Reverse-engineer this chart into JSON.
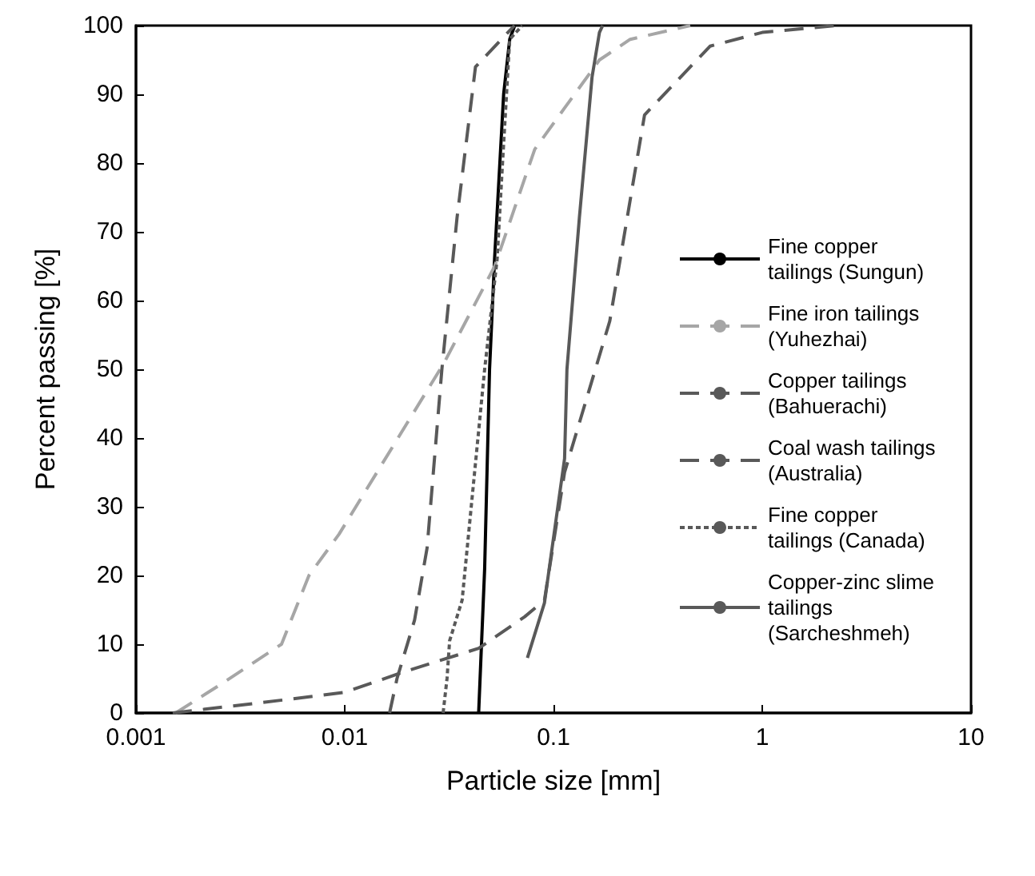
{
  "chart_data": {
    "type": "line",
    "xlabel": "Particle size [mm]",
    "ylabel": "Percent passing [%]",
    "log": "x",
    "xlim": [
      0.001,
      10
    ],
    "xticks": [
      0.001,
      0.01,
      0.1,
      1,
      10
    ],
    "ylim": [
      0,
      100
    ],
    "yticks": [
      0,
      10,
      20,
      30,
      40,
      50,
      60,
      70,
      80,
      90,
      100
    ],
    "grid": false,
    "legend": "right",
    "marker": "none",
    "series": [
      {
        "name": "Fine copper tailings (Sungun)",
        "color": "#000000",
        "line_style": "solid",
        "x": [
          0.0438,
          0.0468,
          0.0494,
          0.0522,
          0.0577,
          0.0617,
          0.0652
        ],
        "values": [
          0,
          21,
          50,
          66,
          90,
          98,
          100
        ]
      },
      {
        "name": "Fine iron tailings (Yuhezhai)",
        "color": "#a6a6a6",
        "line_style": "dashed",
        "x": [
          0.00155,
          0.0025,
          0.00498,
          0.00674,
          0.00939,
          0.03,
          0.0523,
          0.0813,
          0.113,
          0.166,
          0.233,
          0.452
        ],
        "values": [
          0,
          4,
          10,
          20,
          26,
          51,
          65,
          82,
          88,
          95,
          98,
          100
        ]
      },
      {
        "name": "Copper tailings (Bahuerachi)",
        "color": "#595959",
        "line_style": "dashed",
        "x": [
          0.0164,
          0.0178,
          0.0216,
          0.0248,
          0.0292,
          0.0345,
          0.0423,
          0.058,
          0.065
        ],
        "values": [
          0,
          5,
          13.5,
          24,
          50,
          72,
          94,
          98.4,
          100
        ]
      },
      {
        "name": "Coal wash tailings (Australia)",
        "color": "#595959",
        "line_style": "dashed",
        "x": [
          0.0015,
          0.004,
          0.01,
          0.0193,
          0.0438,
          0.0728,
          0.0905,
          0.113,
          0.186,
          0.273,
          0.562,
          1.0,
          2.24
        ],
        "values": [
          0,
          1.5,
          3,
          6,
          9.4,
          14,
          16.4,
          35,
          57,
          87,
          97,
          99,
          100
        ]
      },
      {
        "name": "Fine copper tailings (Canada)",
        "color": "#595959",
        "line_style": "dotted",
        "x": [
          0.0296,
          0.0309,
          0.0318,
          0.0365,
          0.0468,
          0.0537,
          0.057,
          0.0617,
          0.0708
        ],
        "values": [
          0,
          5,
          10.5,
          16.4,
          50,
          66,
          80,
          98,
          100
        ]
      },
      {
        "name": "Copper-zinc slime tailings (Sarcheshmeh)",
        "color": "#595959",
        "line_style": "solid",
        "x": [
          0.075,
          0.0905,
          0.113,
          0.116,
          0.133,
          0.153,
          0.166,
          0.172
        ],
        "values": [
          8,
          16,
          37,
          50,
          72,
          92.5,
          99,
          100
        ]
      }
    ]
  }
}
